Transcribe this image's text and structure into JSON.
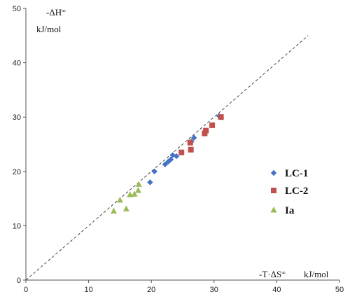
{
  "chart_data": {
    "type": "scatter",
    "xlabel": "-T·ΔS",
    "xlabel_superscript": "∞",
    "xunit": "kJ/mol",
    "ylabel": "-ΔH",
    "ylabel_superscript": "∞",
    "yunit": "kJ/mol",
    "xlim": [
      0,
      50
    ],
    "ylim": [
      0,
      50
    ],
    "xticks": [
      "0",
      "10",
      "20",
      "30",
      "40",
      "50"
    ],
    "yticks": [
      "0",
      "10",
      "20",
      "30",
      "40",
      "50"
    ],
    "grid": false,
    "legend_position": "right",
    "reference_line": {
      "style": "dashed",
      "points": [
        [
          0,
          0
        ],
        [
          45,
          45
        ]
      ]
    },
    "series": [
      {
        "name": "LC-1",
        "marker": "diamond",
        "color": "#4472C4",
        "points": [
          [
            19.8,
            18.0
          ],
          [
            20.5,
            20.0
          ],
          [
            22.2,
            21.3
          ],
          [
            22.7,
            21.8
          ],
          [
            23.1,
            22.2
          ],
          [
            23.4,
            23.0
          ],
          [
            24.0,
            22.8
          ],
          [
            26.4,
            25.5
          ],
          [
            26.8,
            26.2
          ],
          [
            30.8,
            30.2
          ]
        ]
      },
      {
        "name": "LC-2",
        "marker": "square",
        "color": "#C0504D",
        "points": [
          [
            24.8,
            23.5
          ],
          [
            26.2,
            25.3
          ],
          [
            26.3,
            24.0
          ],
          [
            28.5,
            27.0
          ],
          [
            28.7,
            27.5
          ],
          [
            29.7,
            28.5
          ],
          [
            31.1,
            30.0
          ]
        ]
      },
      {
        "name": "Ia",
        "marker": "triangle",
        "color": "#9BBB59",
        "points": [
          [
            14.0,
            12.7
          ],
          [
            15.0,
            14.7
          ],
          [
            16.0,
            13.1
          ],
          [
            16.6,
            15.7
          ],
          [
            17.3,
            15.8
          ],
          [
            17.9,
            16.5
          ],
          [
            18.0,
            17.6
          ]
        ]
      }
    ]
  }
}
